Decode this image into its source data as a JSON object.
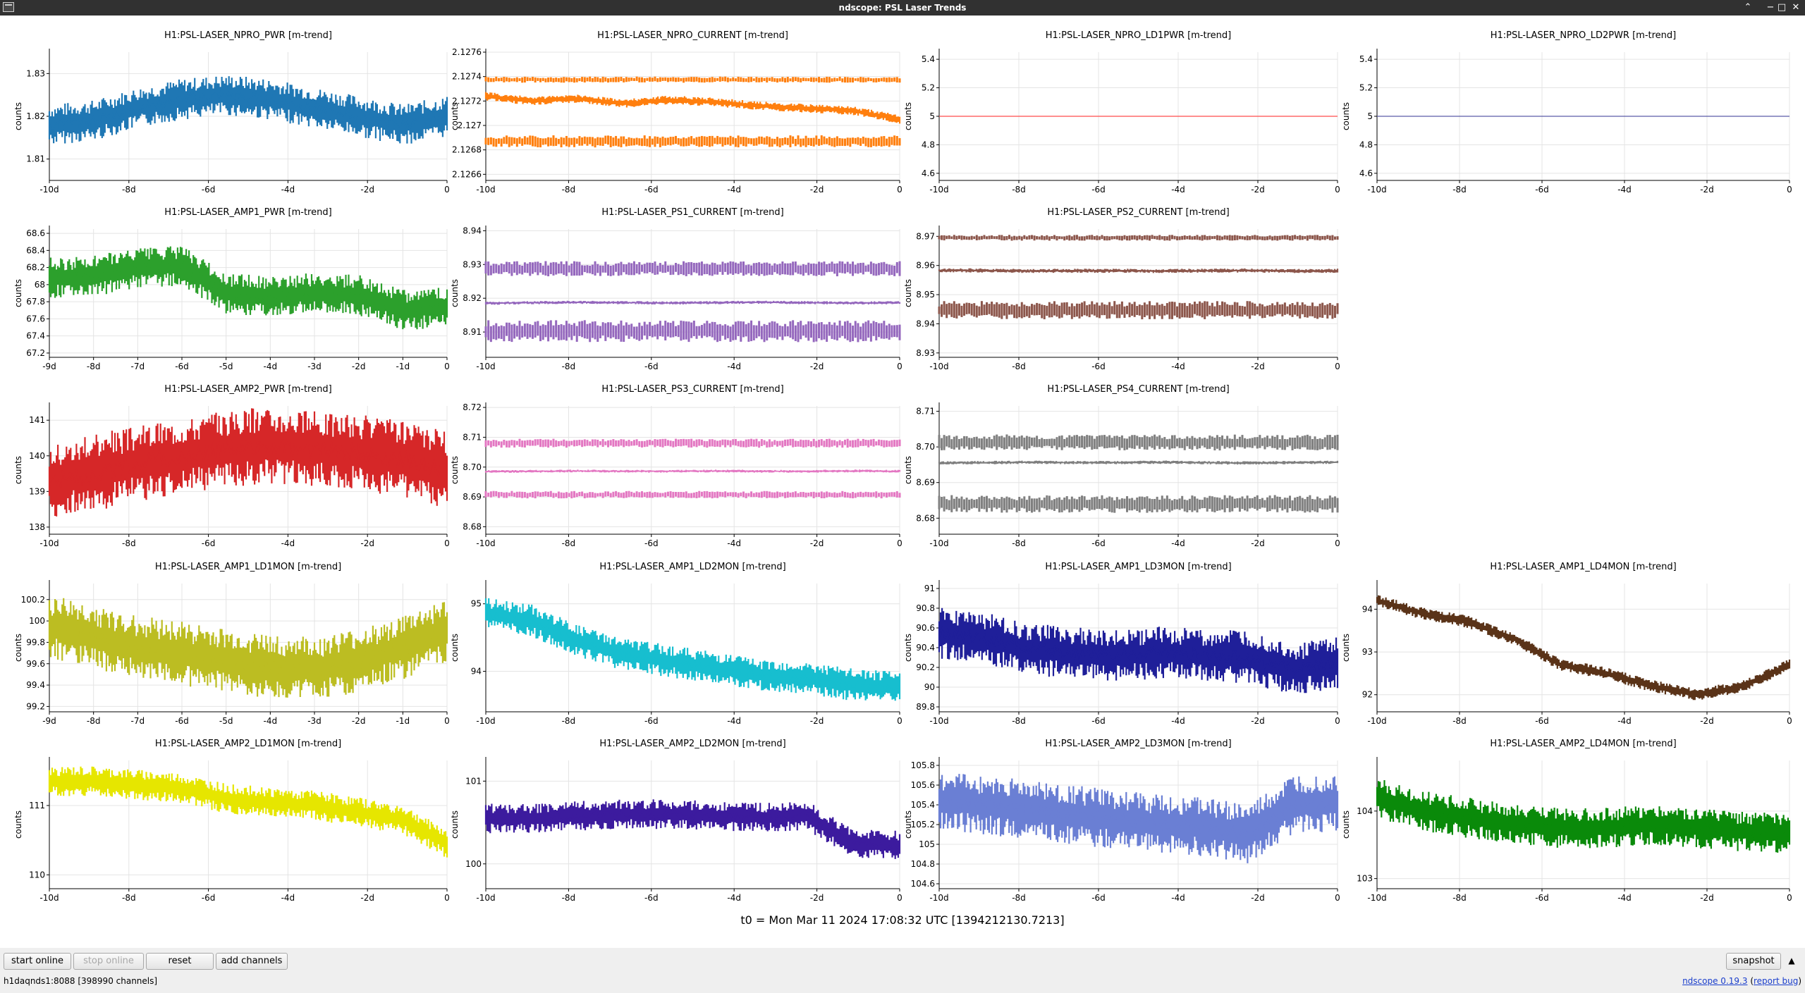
{
  "window": {
    "title": "ndscope: PSL Laser Trends"
  },
  "colors": {
    "titlebar": "#313131",
    "background": "#efefef",
    "plot_bg": "#ffffff",
    "grid": "#e4e4e4",
    "axis": "#000000"
  },
  "t0_label": "t0 = Mon Mar 11 2024 17:08:32 UTC [1394212130.7213]",
  "buttons": {
    "start_online": "start online",
    "stop_online": "stop online",
    "reset": "reset",
    "add_channels": "add channels",
    "snapshot": "snapshot"
  },
  "status": {
    "server": "h1daqnds1:8088  [398990 channels]"
  },
  "version": {
    "app": "ndscope 0.19.3",
    "report_bug": "report bug"
  },
  "chart_data": [
    {
      "type": "line",
      "title": "H1:PSL-LASER_NPRO_PWR [m-trend]",
      "ylabel": "counts",
      "color": "#1f77b4",
      "ylim": [
        1.805,
        1.835
      ],
      "yticks": [
        "1.81",
        "1.82",
        "1.83"
      ],
      "xticks": [
        "-10d",
        "-8d",
        "-6d",
        "-4d",
        "-2d",
        "0"
      ],
      "trend": [
        1.818,
        1.819,
        1.822,
        1.824,
        1.825,
        1.824,
        1.822,
        1.82,
        1.818,
        1.82
      ],
      "spread": 0.004,
      "style": "noisy"
    },
    {
      "type": "line",
      "title": "H1:PSL-LASER_NPRO_CURRENT [m-trend]",
      "ylabel": "counts",
      "color": "#ff7f0e",
      "ylim": [
        2.12655,
        2.1276
      ],
      "yticks": [
        "2.1266",
        "2.1268",
        "2.127",
        "2.1272",
        "2.1274",
        "2.1276"
      ],
      "xticks": [
        "-10d",
        "-8d",
        "-6d",
        "-4d",
        "-2d",
        "0"
      ],
      "trend": [
        2.12724,
        2.1272,
        2.12722,
        2.12718,
        2.12721,
        2.12719,
        2.12716,
        2.12714,
        2.12712,
        2.12705
      ],
      "spread": 3e-05,
      "bands": [
        {
          "low": 2.12735,
          "high": 2.1274
        },
        {
          "low": 2.12682,
          "high": 2.12692
        }
      ],
      "style": "quantized"
    },
    {
      "type": "line",
      "title": "H1:PSL-LASER_NPRO_LD1PWR [m-trend]",
      "ylabel": "counts",
      "color": "#ff4b4b",
      "ylim": [
        4.55,
        5.45
      ],
      "yticks": [
        "4.6",
        "4.8",
        "5",
        "5.2",
        "5.4"
      ],
      "xticks": [
        "-10d",
        "-8d",
        "-6d",
        "-4d",
        "-2d",
        "0"
      ],
      "trend": [
        5,
        5,
        5,
        5,
        5,
        5,
        5,
        5,
        5,
        5
      ],
      "spread": 0,
      "style": "flat"
    },
    {
      "type": "line",
      "title": "H1:PSL-LASER_NPRO_LD2PWR [m-trend]",
      "ylabel": "counts",
      "color": "#5a5aa6",
      "ylim": [
        4.55,
        5.45
      ],
      "yticks": [
        "4.6",
        "4.8",
        "5",
        "5.2",
        "5.4"
      ],
      "xticks": [
        "-10d",
        "-8d",
        "-6d",
        "-4d",
        "-2d",
        "0"
      ],
      "trend": [
        5,
        5,
        5,
        5,
        5,
        5,
        5,
        5,
        5,
        5
      ],
      "spread": 0,
      "style": "flat"
    },
    {
      "type": "line",
      "title": "H1:PSL-LASER_AMP1_PWR [m-trend]",
      "ylabel": "counts",
      "color": "#2ca02c",
      "ylim": [
        67.15,
        68.65
      ],
      "yticks": [
        "67.2",
        "67.4",
        "67.6",
        "67.8",
        "68",
        "68.2",
        "68.4",
        "68.6"
      ],
      "xticks": [
        "-9d",
        "-8d",
        "-7d",
        "-6d",
        "-5d",
        "-4d",
        "-3d",
        "-2d",
        "-1d",
        "0"
      ],
      "trend": [
        68.08,
        68.1,
        68.2,
        68.22,
        67.9,
        67.86,
        67.9,
        67.88,
        67.7,
        67.75
      ],
      "spread": 0.2,
      "style": "noisy"
    },
    {
      "type": "line",
      "title": "H1:PSL-LASER_PS1_CURRENT [m-trend]",
      "ylabel": "counts",
      "color": "#9467bd",
      "ylim": [
        8.9025,
        8.9405
      ],
      "yticks": [
        "8.91",
        "8.92",
        "8.93",
        "8.94"
      ],
      "xticks": [
        "-10d",
        "-8d",
        "-6d",
        "-4d",
        "-2d",
        "0"
      ],
      "trend": [
        8.9185,
        8.9187,
        8.9188,
        8.9187,
        8.9186,
        8.9187,
        8.9188,
        8.9187,
        8.9186,
        8.9187
      ],
      "spread": 0.0004,
      "bands": [
        {
          "low": 8.9265,
          "high": 8.931
        },
        {
          "low": 8.907,
          "high": 8.9135
        }
      ],
      "style": "quantized"
    },
    {
      "type": "line",
      "title": "H1:PSL-LASER_PS2_CURRENT [m-trend]",
      "ylabel": "counts",
      "color": "#8c564b",
      "ylim": [
        8.9285,
        8.9725
      ],
      "yticks": [
        "8.93",
        "8.94",
        "8.95",
        "8.96",
        "8.97"
      ],
      "xticks": [
        "-10d",
        "-8d",
        "-6d",
        "-4d",
        "-2d",
        "0"
      ],
      "trend": [
        8.9583,
        8.9583,
        8.9581,
        8.9582,
        8.9582,
        8.9581,
        8.9582,
        8.9583,
        8.9581,
        8.9582
      ],
      "spread": 0.0006,
      "bands": [
        {
          "low": 8.9685,
          "high": 8.9705
        },
        {
          "low": 8.9415,
          "high": 8.9478
        }
      ],
      "style": "quantized"
    },
    {
      "type": "line",
      "title": "H1:PSL-LASER_AMP2_PWR [m-trend]",
      "ylabel": "counts",
      "color": "#d62728",
      "ylim": [
        137.8,
        141.4
      ],
      "yticks": [
        "138",
        "139",
        "140",
        "141"
      ],
      "xticks": [
        "-10d",
        "-8d",
        "-6d",
        "-4d",
        "-2d",
        "0"
      ],
      "trend": [
        139.3,
        139.5,
        139.8,
        140.0,
        140.2,
        140.3,
        140.2,
        140.1,
        139.9,
        139.6
      ],
      "spread": 0.9,
      "style": "noisy"
    },
    {
      "type": "line",
      "title": "H1:PSL-LASER_PS3_CURRENT [m-trend]",
      "ylabel": "counts",
      "color": "#e377c2",
      "ylim": [
        8.6775,
        8.7205
      ],
      "yticks": [
        "8.68",
        "8.69",
        "8.70",
        "8.71",
        "8.72"
      ],
      "xticks": [
        "-10d",
        "-8d",
        "-6d",
        "-4d",
        "-2d",
        "0"
      ],
      "trend": [
        8.6985,
        8.6986,
        8.6987,
        8.6986,
        8.6986,
        8.6987,
        8.6986,
        8.6986,
        8.6987,
        8.6986
      ],
      "spread": 0.0004,
      "bands": [
        {
          "low": 8.7065,
          "high": 8.7095
        },
        {
          "low": 8.6895,
          "high": 8.692
        }
      ],
      "style": "quantized"
    },
    {
      "type": "line",
      "title": "H1:PSL-LASER_PS4_CURRENT [m-trend]",
      "ylabel": "counts",
      "color": "#7f7f7f",
      "ylim": [
        8.6755,
        8.7115
      ],
      "yticks": [
        "8.68",
        "8.69",
        "8.70",
        "8.71"
      ],
      "xticks": [
        "-10d",
        "-8d",
        "-6d",
        "-4d",
        "-2d",
        "0"
      ],
      "trend": [
        8.6955,
        8.6956,
        8.6957,
        8.6956,
        8.6956,
        8.6957,
        8.6956,
        8.6955,
        8.6956,
        8.6957
      ],
      "spread": 0.0004,
      "bands": [
        {
          "low": 8.699,
          "high": 8.7035
        },
        {
          "low": 8.6815,
          "high": 8.6865
        }
      ],
      "style": "quantized"
    },
    {
      "type": "line",
      "title": "H1:PSL-LASER_AMP1_LD1MON [m-trend]",
      "ylabel": "counts",
      "color": "#bcbd22",
      "ylim": [
        99.15,
        100.35
      ],
      "yticks": [
        "99.2",
        "99.4",
        "99.6",
        "99.8",
        "100",
        "100.2"
      ],
      "xticks": [
        "-9d",
        "-8d",
        "-7d",
        "-6d",
        "-5d",
        "-4d",
        "-3d",
        "-2d",
        "-1d",
        "0"
      ],
      "trend": [
        99.95,
        99.85,
        99.75,
        99.7,
        99.62,
        99.58,
        99.55,
        99.62,
        99.75,
        99.9
      ],
      "spread": 0.25,
      "style": "noisy"
    },
    {
      "type": "line",
      "title": "H1:PSL-LASER_AMP1_LD2MON [m-trend]",
      "ylabel": "counts",
      "color": "#17becf",
      "ylim": [
        93.4,
        95.3
      ],
      "yticks": [
        "94",
        "95"
      ],
      "xticks": [
        "-10d",
        "-8d",
        "-6d",
        "-4d",
        "-2d",
        "0"
      ],
      "trend": [
        94.85,
        94.75,
        94.45,
        94.25,
        94.15,
        94.05,
        93.95,
        93.9,
        93.8,
        93.75
      ],
      "spread": 0.2,
      "style": "noisy"
    },
    {
      "type": "line",
      "title": "H1:PSL-LASER_AMP1_LD3MON [m-trend]",
      "ylabel": "counts",
      "color": "#1f1f99",
      "ylim": [
        89.75,
        91.05
      ],
      "yticks": [
        "89.8",
        "90",
        "90.2",
        "90.4",
        "90.6",
        "90.8",
        "91"
      ],
      "xticks": [
        "-10d",
        "-8d",
        "-6d",
        "-4d",
        "-2d",
        "0"
      ],
      "trend": [
        90.55,
        90.5,
        90.38,
        90.35,
        90.32,
        90.35,
        90.33,
        90.3,
        90.18,
        90.25
      ],
      "spread": 0.22,
      "style": "noisy"
    },
    {
      "type": "line",
      "title": "H1:PSL-LASER_AMP1_LD4MON [m-trend]",
      "ylabel": "counts",
      "color": "#5a3318",
      "ylim": [
        91.6,
        94.6
      ],
      "yticks": [
        "92",
        "93",
        "94"
      ],
      "xticks": [
        "-10d",
        "-8d",
        "-6d",
        "-4d",
        "-2d",
        "0"
      ],
      "trend": [
        94.2,
        93.9,
        93.7,
        93.3,
        92.7,
        92.5,
        92.2,
        92.0,
        92.2,
        92.7
      ],
      "spread": 0.12,
      "style": "noisy"
    },
    {
      "type": "line",
      "title": "H1:PSL-LASER_AMP2_LD1MON [m-trend]",
      "ylabel": "counts",
      "color": "#e6e600",
      "ylim": [
        109.8,
        111.65
      ],
      "yticks": [
        "110",
        "111"
      ],
      "xticks": [
        "-10d",
        "-8d",
        "-6d",
        "-4d",
        "-2d",
        "0"
      ],
      "trend": [
        111.35,
        111.35,
        111.3,
        111.25,
        111.1,
        111.05,
        111.0,
        110.9,
        110.8,
        110.45
      ],
      "spread": 0.18,
      "style": "noisy"
    },
    {
      "type": "line",
      "title": "H1:PSL-LASER_AMP2_LD2MON [m-trend]",
      "ylabel": "counts",
      "color": "#3c1b9e",
      "ylim": [
        99.7,
        101.25
      ],
      "yticks": [
        "100",
        "101"
      ],
      "xticks": [
        "-10d",
        "-8d",
        "-6d",
        "-4d",
        "-2d",
        "0"
      ],
      "trend": [
        100.55,
        100.55,
        100.58,
        100.6,
        100.6,
        100.58,
        100.56,
        100.58,
        100.25,
        100.22
      ],
      "spread": 0.15,
      "style": "noisy"
    },
    {
      "type": "line",
      "title": "H1:PSL-LASER_AMP2_LD3MON [m-trend]",
      "ylabel": "counts",
      "color": "#6a7fd4",
      "ylim": [
        104.55,
        105.85
      ],
      "yticks": [
        "104.6",
        "104.8",
        "105",
        "105.2",
        "105.4",
        "105.6",
        "105.8"
      ],
      "xticks": [
        "-10d",
        "-8d",
        "-6d",
        "-4d",
        "-2d",
        "0"
      ],
      "trend": [
        105.45,
        105.4,
        105.35,
        105.3,
        105.25,
        105.2,
        105.18,
        105.1,
        105.4,
        105.42
      ],
      "spread": 0.25,
      "style": "noisy"
    },
    {
      "type": "line",
      "title": "H1:PSL-LASER_AMP2_LD4MON [m-trend]",
      "ylabel": "counts",
      "color": "#0a8a0a",
      "ylim": [
        102.85,
        104.75
      ],
      "yticks": [
        "103",
        "104"
      ],
      "xticks": [
        "-10d",
        "-8d",
        "-6d",
        "-4d",
        "-2d",
        "0"
      ],
      "trend": [
        104.2,
        104.0,
        103.9,
        103.8,
        103.75,
        103.75,
        103.8,
        103.75,
        103.7,
        103.65
      ],
      "spread": 0.25,
      "style": "noisy"
    }
  ]
}
